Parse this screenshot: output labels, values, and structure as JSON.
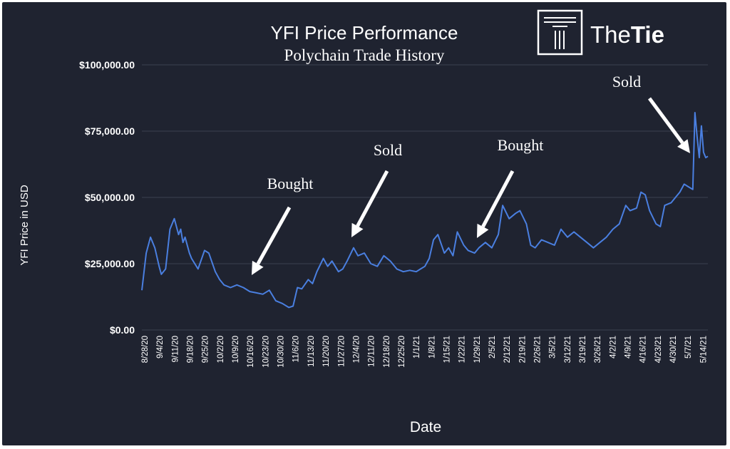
{
  "chart_data": {
    "type": "line",
    "title": "YFI Price Performance",
    "subtitle": "Polychain Trade History",
    "xlabel": "Date",
    "ylabel": "YFI Price in USD",
    "ylim": [
      0,
      100000
    ],
    "yticks": [
      {
        "value": 0,
        "label": "$0.00"
      },
      {
        "value": 25000,
        "label": "$25,000.00"
      },
      {
        "value": 50000,
        "label": "$50,000.00"
      },
      {
        "value": 75000,
        "label": "$75,000.00"
      },
      {
        "value": 100000,
        "label": "$100,000.00"
      }
    ],
    "xlim": [
      "2020-08-28",
      "2021-05-17"
    ],
    "xtick_labels": [
      "8/28/20",
      "9/4/20",
      "9/11/20",
      "9/18/20",
      "9/25/20",
      "10/2/20",
      "10/9/20",
      "10/16/20",
      "10/23/20",
      "10/30/20",
      "11/6/20",
      "11/13/20",
      "11/20/20",
      "11/27/20",
      "12/4/20",
      "12/11/20",
      "12/18/20",
      "12/25/20",
      "1/1/21",
      "1/8/21",
      "1/15/21",
      "1/22/21",
      "1/29/21",
      "2/5/21",
      "2/12/21",
      "2/19/21",
      "2/26/21",
      "3/5/21",
      "3/12/21",
      "3/19/21",
      "3/26/21",
      "4/2/21",
      "4/9/21",
      "4/16/21",
      "4/23/21",
      "4/30/21",
      "5/7/21",
      "5/14/21"
    ],
    "grid": true,
    "line_color": "#4a7fe0",
    "series": [
      {
        "x": [
          "2020-08-28",
          "2020-08-30",
          "2020-09-01",
          "2020-09-03",
          "2020-09-05",
          "2020-09-06",
          "2020-09-08",
          "2020-09-10",
          "2020-09-12",
          "2020-09-14",
          "2020-09-15",
          "2020-09-16",
          "2020-09-17",
          "2020-09-19",
          "2020-09-20",
          "2020-09-23",
          "2020-09-26",
          "2020-09-28",
          "2020-10-01",
          "2020-10-03",
          "2020-10-05",
          "2020-10-08",
          "2020-10-11",
          "2020-10-14",
          "2020-10-17",
          "2020-10-20",
          "2020-10-23",
          "2020-10-26",
          "2020-10-29",
          "2020-11-01",
          "2020-11-04",
          "2020-11-06",
          "2020-11-08",
          "2020-11-10",
          "2020-11-13",
          "2020-11-15",
          "2020-11-17",
          "2020-11-20",
          "2020-11-22",
          "2020-11-24",
          "2020-11-27",
          "2020-11-29",
          "2020-12-01",
          "2020-12-04",
          "2020-12-06",
          "2020-12-09",
          "2020-12-12",
          "2020-12-15",
          "2020-12-18",
          "2020-12-21",
          "2020-12-24",
          "2020-12-27",
          "2020-12-30",
          "2021-01-02",
          "2021-01-04",
          "2021-01-06",
          "2021-01-08",
          "2021-01-10",
          "2021-01-12",
          "2021-01-15",
          "2021-01-17",
          "2021-01-19",
          "2021-01-21",
          "2021-01-24",
          "2021-01-26",
          "2021-01-29",
          "2021-01-31",
          "2021-02-03",
          "2021-02-06",
          "2021-02-09",
          "2021-02-11",
          "2021-02-14",
          "2021-02-17",
          "2021-02-19",
          "2021-02-22",
          "2021-02-24",
          "2021-02-26",
          "2021-03-01",
          "2021-03-04",
          "2021-03-07",
          "2021-03-10",
          "2021-03-13",
          "2021-03-16",
          "2021-03-19",
          "2021-03-22",
          "2021-03-25",
          "2021-03-28",
          "2021-03-31",
          "2021-04-03",
          "2021-04-06",
          "2021-04-09",
          "2021-04-11",
          "2021-04-14",
          "2021-04-16",
          "2021-04-18",
          "2021-04-20",
          "2021-04-23",
          "2021-04-25",
          "2021-04-27",
          "2021-04-30",
          "2021-05-02",
          "2021-05-04",
          "2021-05-06",
          "2021-05-08",
          "2021-05-10",
          "2021-05-11",
          "2021-05-12",
          "2021-05-13",
          "2021-05-14",
          "2021-05-15",
          "2021-05-16",
          "2021-05-17"
        ],
        "values": [
          15000,
          29000,
          35000,
          31000,
          24000,
          21000,
          23000,
          38000,
          42000,
          36000,
          38000,
          33000,
          35000,
          29000,
          27000,
          23000,
          30000,
          29000,
          22000,
          19000,
          17000,
          16000,
          17000,
          16000,
          14500,
          14000,
          13500,
          15000,
          11000,
          10000,
          8500,
          9000,
          16000,
          15500,
          19000,
          17500,
          22000,
          27000,
          24000,
          26000,
          22000,
          23000,
          26000,
          31000,
          28000,
          29000,
          25000,
          24000,
          28000,
          26000,
          23000,
          22000,
          22500,
          22000,
          23000,
          24000,
          27000,
          34000,
          36000,
          29000,
          31000,
          28000,
          37000,
          32000,
          30000,
          29000,
          31000,
          33000,
          31000,
          36000,
          47000,
          42000,
          44000,
          45000,
          40000,
          32000,
          31000,
          34000,
          33000,
          32000,
          38000,
          35000,
          37000,
          35000,
          33000,
          31000,
          33000,
          35000,
          38000,
          40000,
          47000,
          45000,
          46000,
          52000,
          51000,
          45000,
          40000,
          39000,
          47000,
          48000,
          50000,
          52000,
          55000,
          54000,
          53000,
          82000,
          73000,
          65000,
          77000,
          67000,
          65000,
          65500
        ]
      }
    ],
    "annotations": [
      {
        "text": "Bought",
        "date": "2020-10-23",
        "value": 20000
      },
      {
        "text": "Sold",
        "date": "2020-12-03",
        "value": 36000
      },
      {
        "text": "Bought",
        "date": "2021-01-27",
        "value": 37000
      },
      {
        "text": "Sold",
        "date": "2021-05-13",
        "value": 67000
      }
    ]
  },
  "brand": {
    "name_prefix": "The",
    "name_suffix": "Tie"
  }
}
